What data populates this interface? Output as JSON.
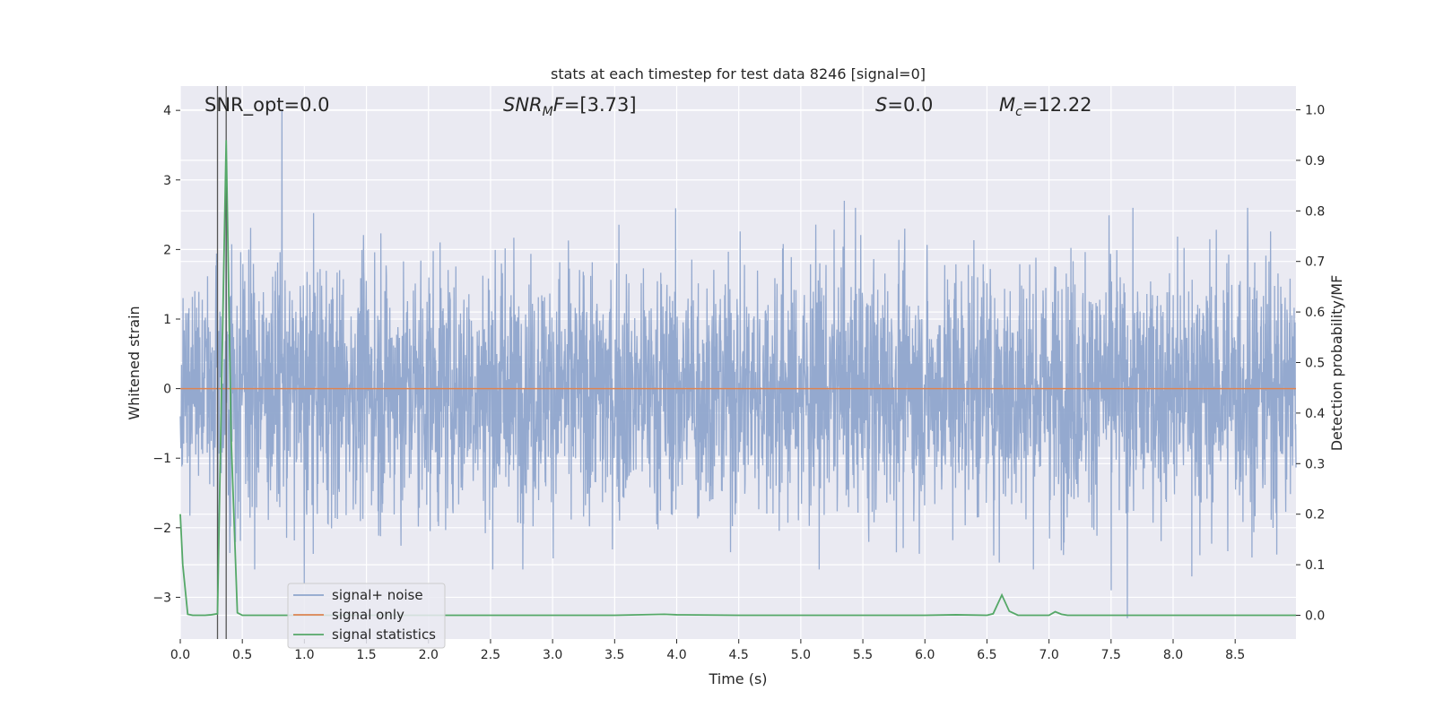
{
  "chart_data": {
    "type": "line",
    "title": "stats at each timestep for test data 8246 [signal=0]",
    "xlabel": "Time (s)",
    "ylabel": "Whitened strain",
    "y2label": "Detection probability/MF",
    "xlim": [
      0.0,
      8.99
    ],
    "ylim": [
      -3.6,
      4.35
    ],
    "y2lim": [
      -0.047,
      1.047
    ],
    "x_ticks": [
      0.0,
      0.5,
      1.0,
      1.5,
      2.0,
      2.5,
      3.0,
      3.5,
      4.0,
      4.5,
      5.0,
      5.5,
      6.0,
      6.5,
      7.0,
      7.5,
      8.0,
      8.5
    ],
    "x_tick_labels": [
      "0.0",
      "0.5",
      "1.0",
      "1.5",
      "2.0",
      "2.5",
      "3.0",
      "3.5",
      "4.0",
      "4.5",
      "5.0",
      "5.5",
      "6.0",
      "6.5",
      "7.0",
      "7.5",
      "8.0",
      "8.5"
    ],
    "y_ticks": [
      -3,
      -2,
      -1,
      0,
      1,
      2,
      3,
      4
    ],
    "y_tick_labels": [
      "−3",
      "−2",
      "−1",
      "0",
      "1",
      "2",
      "3",
      "4"
    ],
    "y2_ticks": [
      0.0,
      0.1,
      0.2,
      0.3,
      0.4,
      0.5,
      0.6,
      0.7,
      0.8,
      0.9,
      1.0
    ],
    "y2_tick_labels": [
      "0.0",
      "0.1",
      "0.2",
      "0.3",
      "0.4",
      "0.5",
      "0.6",
      "0.7",
      "0.8",
      "0.9",
      "1.0"
    ],
    "grid": true,
    "legend_placement": "lower-left",
    "legend": [
      {
        "label": "signal+ noise",
        "color": "#8fa5cc"
      },
      {
        "label": "signal only",
        "color": "#dd8452"
      },
      {
        "label": "signal statistics",
        "color": "#55a868"
      }
    ],
    "annotations": [
      {
        "text": "SNR_opt=0.0",
        "x": 0.2
      },
      {
        "text": "SNR_MF=[3.73]",
        "x": 2.6
      },
      {
        "text": "S=0.0",
        "x": 5.6
      },
      {
        "text": "M_c=12.22",
        "x": 6.6
      }
    ],
    "vertical_lines": [
      0.3,
      0.37
    ],
    "signal_only": {
      "x": [
        0.0,
        8.99
      ],
      "y": [
        0.0,
        0.0
      ],
      "color": "#dd8452"
    },
    "signal_statistics": {
      "color": "#55a868",
      "x": [
        0.0,
        0.02,
        0.06,
        0.1,
        0.15,
        0.2,
        0.25,
        0.3,
        0.34,
        0.37,
        0.41,
        0.46,
        0.5,
        1.0,
        1.5,
        2.0,
        2.5,
        3.0,
        3.5,
        3.9,
        4.0,
        4.5,
        5.0,
        5.5,
        6.0,
        6.25,
        6.5,
        6.55,
        6.62,
        6.68,
        6.75,
        7.0,
        7.05,
        7.1,
        7.15,
        7.5,
        8.0,
        8.5,
        8.99
      ],
      "y": [
        0.2,
        0.1,
        0.002,
        0.0,
        0.0,
        0.0,
        0.001,
        0.003,
        0.55,
        0.94,
        0.35,
        0.005,
        0.0,
        0.0,
        0.0,
        0.0,
        0.0,
        0.0,
        0.0,
        0.002,
        0.001,
        0.0,
        0.0,
        0.0,
        0.0,
        0.001,
        0.0,
        0.003,
        0.04,
        0.008,
        0.0,
        0.0,
        0.007,
        0.002,
        0.0,
        0.0,
        0.0,
        0.0,
        0.0
      ]
    },
    "signal_plus_noise": {
      "color": "#8fa5cc",
      "typical_amplitude": 1.1,
      "notable_extremes": [
        {
          "x": 0.82,
          "y": 4.0
        },
        {
          "x": 0.37,
          "y": 3.5
        },
        {
          "x": 5.35,
          "y": 2.7
        },
        {
          "x": 8.6,
          "y": 2.6
        },
        {
          "x": 1.0,
          "y": -2.8
        },
        {
          "x": 7.63,
          "y": -3.3
        },
        {
          "x": 7.5,
          "y": -2.9
        },
        {
          "x": 8.15,
          "y": -2.7
        },
        {
          "x": 6.6,
          "y": -2.5
        }
      ]
    }
  }
}
